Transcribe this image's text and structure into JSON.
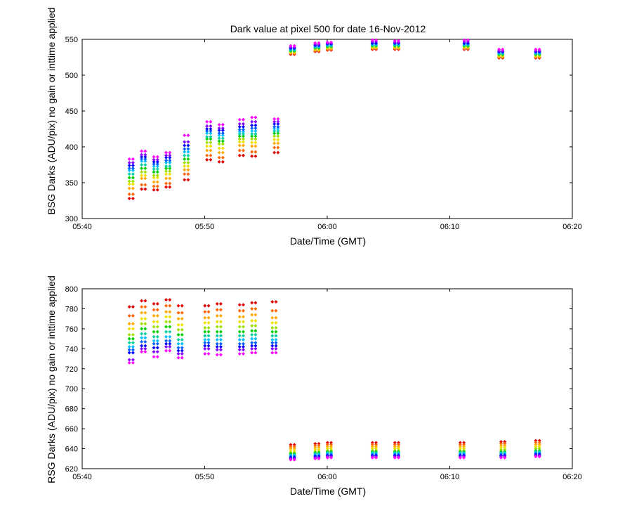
{
  "title": "Dark value at pixel 500 for date 16-Nov-2012",
  "chart_data": [
    {
      "type": "scatter",
      "title": "Dark value at pixel 500 for date 16-Nov-2012",
      "xlabel": "Date/Time (GMT)",
      "ylabel": "BSG Darks (ADU/pix) no gain or inttime applied",
      "xlim": [
        "05:40",
        "06:20"
      ],
      "ylim": [
        300,
        550
      ],
      "xticks": [
        "05:40",
        "05:50",
        "06:00",
        "06:10",
        "06:20"
      ],
      "yticks": [
        300,
        350,
        400,
        450,
        500,
        550
      ],
      "grid": false,
      "marker": "diamond",
      "color_scheme": "rainbow (red to magenta)",
      "colors": [
        "#e00000",
        "#ff6600",
        "#ffaa00",
        "#f0e000",
        "#a0e000",
        "#00d000",
        "#00d0a0",
        "#00c0ff",
        "#0060ff",
        "#0000ff",
        "#8000ff",
        "#ff00ff"
      ],
      "groups": [
        {
          "time": "05:44:00",
          "values": [
            328,
            334,
            342,
            348,
            352,
            357,
            362,
            367,
            370,
            374,
            378,
            383
          ]
        },
        {
          "time": "05:45:00",
          "values": [
            341,
            347,
            356,
            360,
            365,
            370,
            375,
            380,
            383,
            386,
            389,
            394
          ]
        },
        {
          "time": "05:46:00",
          "values": [
            340,
            345,
            351,
            357,
            360,
            365,
            369,
            373,
            376,
            379,
            382,
            386
          ]
        },
        {
          "time": "05:47:00",
          "values": [
            344,
            349,
            356,
            362,
            366,
            370,
            373,
            378,
            381,
            385,
            388,
            392
          ]
        },
        {
          "time": "05:48:30",
          "values": [
            354,
            362,
            368,
            373,
            378,
            383,
            388,
            393,
            397,
            402,
            407,
            416
          ]
        },
        {
          "time": "05:50:20",
          "values": [
            382,
            388,
            395,
            401,
            406,
            411,
            414,
            419,
            422,
            425,
            429,
            435
          ]
        },
        {
          "time": "05:51:20",
          "values": [
            379,
            385,
            392,
            398,
            404,
            408,
            412,
            416,
            419,
            423,
            426,
            431
          ]
        },
        {
          "time": "05:53:00",
          "values": [
            388,
            395,
            402,
            407,
            411,
            415,
            418,
            421,
            424,
            428,
            432,
            438
          ]
        },
        {
          "time": "05:54:00",
          "values": [
            387,
            393,
            401,
            406,
            411,
            415,
            418,
            422,
            426,
            430,
            435,
            441
          ]
        },
        {
          "time": "05:55:50",
          "values": [
            392,
            399,
            405,
            410,
            415,
            419,
            422,
            425,
            428,
            432,
            435,
            439
          ]
        },
        {
          "time": "05:57:10",
          "values": [
            529,
            530,
            531,
            532,
            533,
            534,
            535,
            536,
            537,
            538,
            539,
            541
          ]
        },
        {
          "time": "05:59:10",
          "values": [
            533,
            534,
            535,
            536,
            537,
            538,
            539,
            540,
            541,
            542,
            543,
            545
          ]
        },
        {
          "time": "06:00:10",
          "values": [
            535,
            536,
            537,
            538,
            539,
            540,
            541,
            542,
            543,
            544,
            545,
            546
          ]
        },
        {
          "time": "06:03:50",
          "values": [
            536,
            537,
            538,
            539,
            540,
            541,
            542,
            543,
            544,
            545,
            547,
            549
          ]
        },
        {
          "time": "06:05:40",
          "values": [
            536,
            537,
            538,
            539,
            540,
            541,
            542,
            543,
            544,
            545,
            546,
            548
          ]
        },
        {
          "time": "06:11:20",
          "values": [
            536,
            537,
            538,
            539,
            540,
            541,
            542,
            543,
            544,
            545,
            547,
            549
          ]
        },
        {
          "time": "06:14:10",
          "values": [
            524,
            525,
            526,
            527,
            528,
            529,
            530,
            531,
            532,
            533,
            534,
            536
          ]
        },
        {
          "time": "06:17:10",
          "values": [
            524,
            525,
            526,
            527,
            528,
            529,
            530,
            531,
            532,
            533,
            534,
            536
          ]
        }
      ]
    },
    {
      "type": "scatter",
      "title": "",
      "xlabel": "Date/Time (GMT)",
      "ylabel": "RSG Darks (ADU/pix) no gain or inttime applied",
      "xlim": [
        "05:40",
        "06:20"
      ],
      "ylim": [
        620,
        800
      ],
      "xticks": [
        "05:40",
        "05:50",
        "06:00",
        "06:10",
        "06:20"
      ],
      "yticks": [
        620,
        640,
        660,
        680,
        700,
        720,
        740,
        760,
        780,
        800
      ],
      "grid": false,
      "marker": "diamond",
      "color_scheme": "rainbow (red to magenta)",
      "colors": [
        "#e00000",
        "#ff6600",
        "#ffaa00",
        "#f0e000",
        "#a0e000",
        "#00d000",
        "#00d0a0",
        "#00c0ff",
        "#0060ff",
        "#0000ff",
        "#8000ff",
        "#ff00ff"
      ],
      "groups": [
        {
          "time": "05:44:00",
          "values": [
            782,
            773,
            765,
            760,
            754,
            750,
            746,
            742,
            739,
            736,
            729,
            726
          ]
        },
        {
          "time": "05:45:00",
          "values": [
            788,
            782,
            776,
            770,
            765,
            760,
            755,
            751,
            747,
            743,
            740,
            737
          ]
        },
        {
          "time": "05:46:00",
          "values": [
            785,
            779,
            773,
            767,
            762,
            757,
            752,
            748,
            745,
            741,
            737,
            732
          ]
        },
        {
          "time": "05:47:00",
          "values": [
            789,
            783,
            777,
            772,
            767,
            762,
            757,
            752,
            748,
            745,
            742,
            738
          ]
        },
        {
          "time": "05:48:00",
          "values": [
            783,
            776,
            770,
            764,
            759,
            754,
            749,
            745,
            741,
            738,
            735,
            731
          ]
        },
        {
          "time": "05:50:10",
          "values": [
            783,
            777,
            771,
            766,
            761,
            757,
            753,
            749,
            746,
            743,
            740,
            735
          ]
        },
        {
          "time": "05:51:10",
          "values": [
            785,
            779,
            773,
            767,
            762,
            757,
            753,
            749,
            745,
            742,
            739,
            734
          ]
        },
        {
          "time": "05:53:00",
          "values": [
            784,
            778,
            772,
            767,
            762,
            757,
            753,
            749,
            745,
            742,
            739,
            735
          ]
        },
        {
          "time": "05:54:00",
          "values": [
            786,
            780,
            774,
            768,
            763,
            758,
            754,
            750,
            746,
            743,
            740,
            736
          ]
        },
        {
          "time": "05:55:40",
          "values": [
            787,
            778,
            771,
            766,
            761,
            757,
            753,
            749,
            746,
            743,
            740,
            736
          ]
        },
        {
          "time": "05:57:10",
          "values": [
            644,
            642,
            640,
            638,
            636,
            635,
            634,
            633,
            632,
            631,
            630,
            629
          ]
        },
        {
          "time": "05:59:10",
          "values": [
            645,
            643,
            641,
            639,
            637,
            636,
            635,
            634,
            633,
            632,
            631,
            630
          ]
        },
        {
          "time": "06:00:10",
          "values": [
            646,
            644,
            642,
            640,
            638,
            637,
            636,
            635,
            634,
            633,
            632,
            631
          ]
        },
        {
          "time": "06:03:50",
          "values": [
            646,
            644,
            642,
            640,
            638,
            637,
            636,
            635,
            634,
            633,
            632,
            631
          ]
        },
        {
          "time": "06:05:40",
          "values": [
            646,
            644,
            642,
            640,
            638,
            637,
            636,
            635,
            634,
            633,
            632,
            631
          ]
        },
        {
          "time": "06:11:00",
          "values": [
            646,
            644,
            642,
            640,
            638,
            637,
            636,
            635,
            634,
            633,
            632,
            631
          ]
        },
        {
          "time": "06:14:20",
          "values": [
            647,
            645,
            643,
            641,
            639,
            637,
            636,
            635,
            634,
            633,
            632,
            631
          ]
        },
        {
          "time": "06:17:10",
          "values": [
            648,
            646,
            644,
            642,
            640,
            638,
            637,
            636,
            635,
            634,
            633,
            632
          ]
        }
      ]
    }
  ]
}
